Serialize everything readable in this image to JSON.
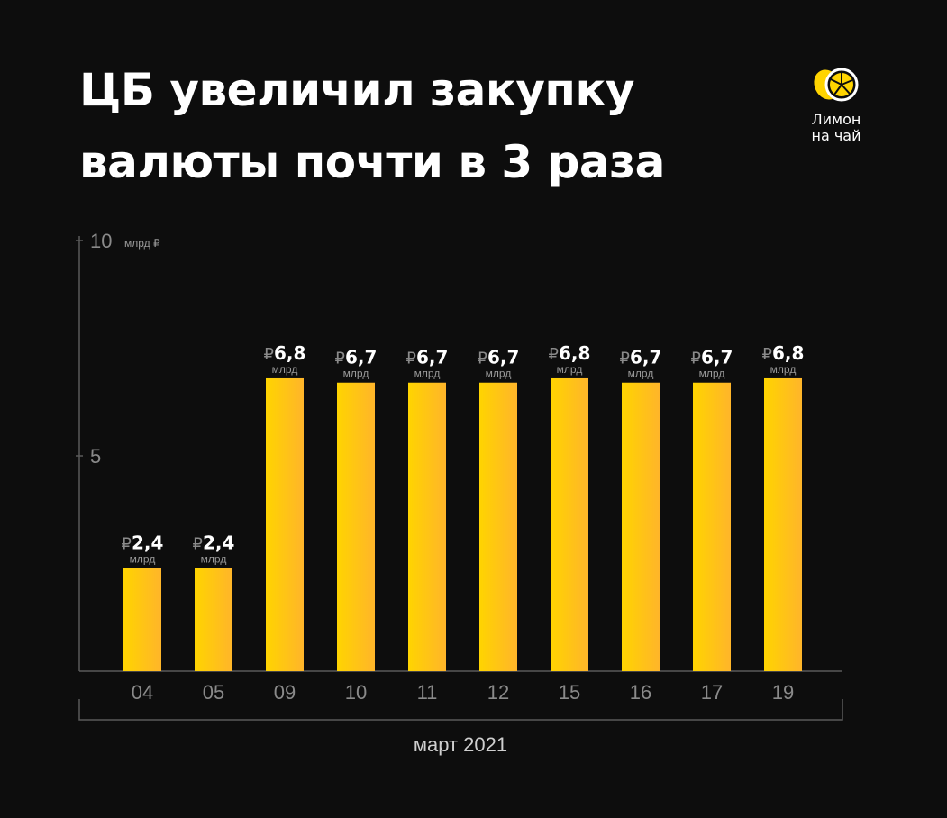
{
  "title_lines": [
    "ЦБ увеличил закупку",
    "валюты почти в 3 раза"
  ],
  "logo": {
    "line1": "Лимон",
    "line2": "на чай"
  },
  "chart_data": {
    "type": "bar",
    "title": "ЦБ увеличил закупку валюты почти в 3 раза",
    "categories": [
      "04",
      "05",
      "09",
      "10",
      "11",
      "12",
      "15",
      "16",
      "17",
      "19"
    ],
    "values": [
      2.4,
      2.4,
      6.8,
      6.7,
      6.7,
      6.7,
      6.8,
      6.7,
      6.7,
      6.8
    ],
    "value_labels": [
      "2,4",
      "2,4",
      "6,8",
      "6,7",
      "6,7",
      "6,7",
      "6,8",
      "6,7",
      "6,7",
      "6,8"
    ],
    "value_prefix": "₽",
    "value_unit": "млрд",
    "ylim": [
      0,
      10
    ],
    "yticks": [
      {
        "value": 10,
        "label": "10"
      },
      {
        "value": 5,
        "label": "5"
      }
    ],
    "yunit": "млрд ₽",
    "xlabel": "март 2021",
    "grid": false,
    "bar_colors": [
      "#ffd400",
      "#ffb52a"
    ]
  }
}
